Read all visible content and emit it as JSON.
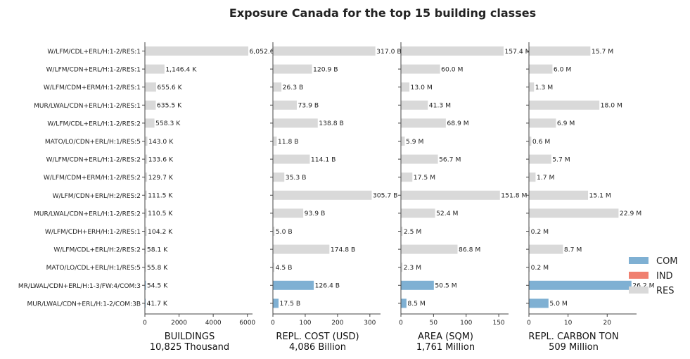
{
  "chart_data": {
    "type": "bar",
    "orientation": "horizontal",
    "title": "Exposure Canada for the top 15 building classes",
    "categories": [
      "W/LFM/CDL+ERL/H:1-2/RES:1",
      "W/LFM/CDN+ERL/H:1-2/RES:1",
      "W/LFM/CDM+ERM/H:1-2/RES:1",
      "MUR/LWAL/CDN+ERL/H:1-2/RES:1",
      "W/LFM/CDL+ERL/H:1-2/RES:2",
      "MATO/LO/CDN+ERL/H:1/RES:5",
      "W/LFM/CDN+ERL/H:1-2/RES:2",
      "W/LFM/CDM+ERM/H:1-2/RES:2",
      "W/LFM/CDN+ERL/H:2/RES:2",
      "MUR/LWAL/CDN+ERL/H:1-2/RES:2",
      "W/LFM/CDH+ERH/H:1-2/RES:1",
      "W/LFM/CDL+ERL/H:2/RES:2",
      "MATO/LO/CDL+ERL/H:1/RES:5",
      "MR/LWAL/CDN+ERL/H:1-3/FW:4/COM:3",
      "MUR/LWAL/CDN+ERL/H:1-2/COM:3B"
    ],
    "occupancy": [
      "RES",
      "RES",
      "RES",
      "RES",
      "RES",
      "RES",
      "RES",
      "RES",
      "RES",
      "RES",
      "RES",
      "RES",
      "RES",
      "COM",
      "COM"
    ],
    "legend": {
      "placement": "right",
      "entries": [
        {
          "name": "COM",
          "color": "#7fb0d3"
        },
        {
          "name": "IND",
          "color": "#f08070"
        },
        {
          "name": "RES",
          "color": "#d9d9d9"
        }
      ]
    },
    "panels": [
      {
        "xlabel": "BUILDINGS",
        "total": "10,825 Thousand",
        "xlim": [
          0,
          6300
        ],
        "ticks": [
          0,
          2000,
          4000,
          6000
        ],
        "tick_labels": [
          "0",
          "2000",
          "4000",
          "6000"
        ],
        "values": [
          6052.6,
          1146.4,
          655.6,
          635.5,
          558.3,
          143.0,
          133.6,
          129.7,
          111.5,
          110.5,
          104.2,
          58.1,
          55.8,
          54.5,
          41.7
        ],
        "labels": [
          "6,052.6",
          "1,146.4 K",
          "655.6 K",
          "635.5 K",
          "558.3 K",
          "143.0 K",
          "133.6 K",
          "129.7 K",
          "111.5 K",
          "110.5 K",
          "104.2 K",
          "58.1 K",
          "55.8 K",
          "54.5 K",
          "41.7 K"
        ]
      },
      {
        "xlabel": "REPL. COST (USD)",
        "total": "4,086 Billion",
        "xlim": [
          0,
          333
        ],
        "ticks": [
          0,
          100,
          200,
          300
        ],
        "tick_labels": [
          "0",
          "100",
          "200",
          "300"
        ],
        "values": [
          317.0,
          120.9,
          26.3,
          73.9,
          138.8,
          11.8,
          114.1,
          35.3,
          305.7,
          93.9,
          5.0,
          174.8,
          4.5,
          126.4,
          17.5
        ],
        "labels": [
          "317.0 B",
          "120.9 B",
          "26.3 B",
          "73.9 B",
          "138.8 B",
          "11.8 B",
          "114.1 B",
          "35.3 B",
          "305.7 B",
          "93.9 B",
          "5.0 B",
          "174.8 B",
          "4.5 B",
          "126.4 B",
          "17.5 B"
        ]
      },
      {
        "xlabel": "AREA (SQM)",
        "total": "1,761 Million",
        "xlim": [
          0,
          165
        ],
        "ticks": [
          0,
          50,
          100,
          150
        ],
        "tick_labels": [
          "0",
          "50",
          "100",
          "150"
        ],
        "values": [
          157.4,
          60.0,
          13.0,
          41.3,
          68.9,
          5.9,
          56.7,
          17.5,
          151.8,
          52.4,
          2.5,
          86.8,
          2.3,
          50.5,
          8.5
        ],
        "labels": [
          "157.4 M",
          "60.0 M",
          "13.0 M",
          "41.3 M",
          "68.9 M",
          "5.9 M",
          "56.7 M",
          "17.5 M",
          "151.8 M",
          "52.4 M",
          "2.5 M",
          "86.8 M",
          "2.3 M",
          "50.5 M",
          "8.5 M"
        ]
      },
      {
        "xlabel": "REPL. CARBON TON",
        "total": "509 Million",
        "xlim": [
          0,
          27.5
        ],
        "ticks": [
          0,
          10,
          20
        ],
        "tick_labels": [
          "0",
          "10",
          "20"
        ],
        "values": [
          15.7,
          6.0,
          1.3,
          18.0,
          6.9,
          0.6,
          5.7,
          1.7,
          15.1,
          22.9,
          0.2,
          8.7,
          0.2,
          26.2,
          5.0
        ],
        "labels": [
          "15.7 M",
          "6.0 M",
          "1.3 M",
          "18.0 M",
          "6.9 M",
          "0.6 M",
          "5.7 M",
          "1.7 M",
          "15.1 M",
          "22.9 M",
          "0.2 M",
          "8.7 M",
          "0.2 M",
          "26.2 M",
          "5.0 M"
        ]
      }
    ]
  }
}
